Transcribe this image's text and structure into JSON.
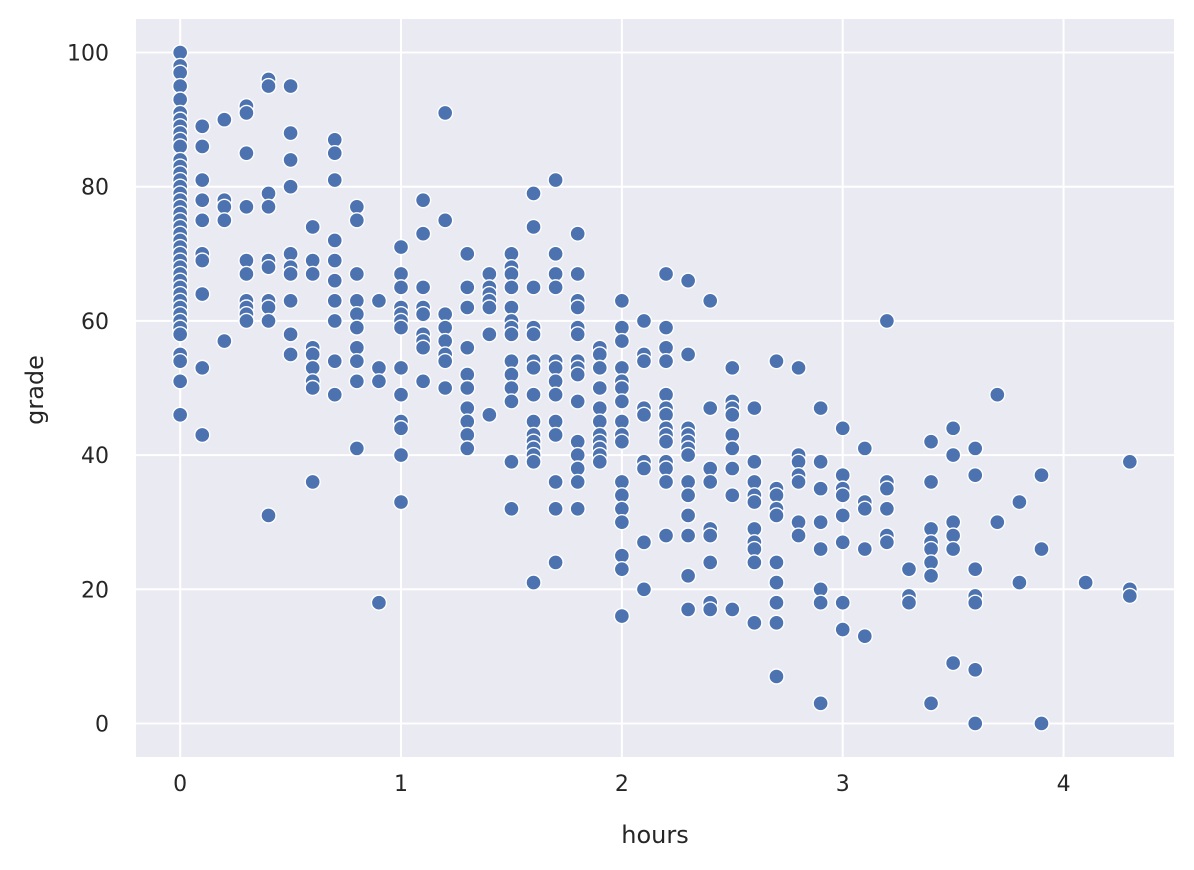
{
  "chart_data": {
    "type": "scatter",
    "title": "",
    "xlabel": "hours",
    "ylabel": "grade",
    "xlim": [
      -0.2,
      4.5
    ],
    "ylim": [
      -5,
      105
    ],
    "xticks": [
      0,
      1,
      2,
      3,
      4
    ],
    "yticks": [
      0,
      20,
      40,
      60,
      80,
      100
    ],
    "grid": true,
    "point_color": "#4c72b0",
    "background_color": "#eaeaf2",
    "points": [
      [
        0,
        100
      ],
      [
        0,
        98
      ],
      [
        0,
        97
      ],
      [
        0,
        95
      ],
      [
        0,
        93
      ],
      [
        0,
        91
      ],
      [
        0,
        90
      ],
      [
        0,
        89
      ],
      [
        0,
        88
      ],
      [
        0,
        87
      ],
      [
        0,
        86
      ],
      [
        0,
        84
      ],
      [
        0,
        83
      ],
      [
        0,
        82
      ],
      [
        0,
        81
      ],
      [
        0,
        80
      ],
      [
        0,
        79
      ],
      [
        0,
        78
      ],
      [
        0,
        77
      ],
      [
        0,
        76
      ],
      [
        0,
        75
      ],
      [
        0,
        74
      ],
      [
        0,
        73
      ],
      [
        0,
        72
      ],
      [
        0,
        71
      ],
      [
        0,
        70
      ],
      [
        0,
        69
      ],
      [
        0,
        68
      ],
      [
        0,
        67
      ],
      [
        0,
        66
      ],
      [
        0,
        65
      ],
      [
        0,
        64
      ],
      [
        0,
        63
      ],
      [
        0,
        62
      ],
      [
        0,
        61
      ],
      [
        0,
        60
      ],
      [
        0,
        59
      ],
      [
        0,
        58
      ],
      [
        0,
        55
      ],
      [
        0,
        54
      ],
      [
        0,
        51
      ],
      [
        0,
        46
      ],
      [
        0.1,
        89
      ],
      [
        0.1,
        86
      ],
      [
        0.1,
        81
      ],
      [
        0.1,
        78
      ],
      [
        0.1,
        75
      ],
      [
        0.1,
        70
      ],
      [
        0.1,
        69
      ],
      [
        0.1,
        64
      ],
      [
        0.1,
        53
      ],
      [
        0.1,
        43
      ],
      [
        0.2,
        90
      ],
      [
        0.2,
        78
      ],
      [
        0.2,
        77
      ],
      [
        0.2,
        75
      ],
      [
        0.2,
        57
      ],
      [
        0.3,
        92
      ],
      [
        0.3,
        91
      ],
      [
        0.3,
        85
      ],
      [
        0.3,
        77
      ],
      [
        0.3,
        69
      ],
      [
        0.3,
        67
      ],
      [
        0.3,
        63
      ],
      [
        0.3,
        62
      ],
      [
        0.3,
        61
      ],
      [
        0.3,
        60
      ],
      [
        0.4,
        96
      ],
      [
        0.4,
        95
      ],
      [
        0.4,
        79
      ],
      [
        0.4,
        77
      ],
      [
        0.4,
        69
      ],
      [
        0.4,
        68
      ],
      [
        0.4,
        63
      ],
      [
        0.4,
        62
      ],
      [
        0.4,
        60
      ],
      [
        0.4,
        31
      ],
      [
        0.5,
        95
      ],
      [
        0.5,
        88
      ],
      [
        0.5,
        84
      ],
      [
        0.5,
        80
      ],
      [
        0.5,
        70
      ],
      [
        0.5,
        68
      ],
      [
        0.5,
        67
      ],
      [
        0.5,
        63
      ],
      [
        0.5,
        58
      ],
      [
        0.5,
        55
      ],
      [
        0.6,
        74
      ],
      [
        0.6,
        69
      ],
      [
        0.6,
        67
      ],
      [
        0.6,
        56
      ],
      [
        0.6,
        55
      ],
      [
        0.6,
        53
      ],
      [
        0.6,
        51
      ],
      [
        0.6,
        50
      ],
      [
        0.6,
        36
      ],
      [
        0.7,
        87
      ],
      [
        0.7,
        85
      ],
      [
        0.7,
        81
      ],
      [
        0.7,
        72
      ],
      [
        0.7,
        69
      ],
      [
        0.7,
        66
      ],
      [
        0.7,
        63
      ],
      [
        0.7,
        60
      ],
      [
        0.7,
        54
      ],
      [
        0.7,
        49
      ],
      [
        0.8,
        77
      ],
      [
        0.8,
        75
      ],
      [
        0.8,
        67
      ],
      [
        0.8,
        63
      ],
      [
        0.8,
        61
      ],
      [
        0.8,
        59
      ],
      [
        0.8,
        56
      ],
      [
        0.8,
        54
      ],
      [
        0.8,
        51
      ],
      [
        0.8,
        41
      ],
      [
        0.9,
        63
      ],
      [
        0.9,
        53
      ],
      [
        0.9,
        51
      ],
      [
        0.9,
        18
      ],
      [
        1.0,
        71
      ],
      [
        1.0,
        67
      ],
      [
        1.0,
        65
      ],
      [
        1.0,
        62
      ],
      [
        1.0,
        61
      ],
      [
        1.0,
        60
      ],
      [
        1.0,
        59
      ],
      [
        1.0,
        53
      ],
      [
        1.0,
        49
      ],
      [
        1.0,
        45
      ],
      [
        1.0,
        44
      ],
      [
        1.0,
        40
      ],
      [
        1.0,
        33
      ],
      [
        1.1,
        78
      ],
      [
        1.1,
        73
      ],
      [
        1.1,
        65
      ],
      [
        1.1,
        62
      ],
      [
        1.1,
        61
      ],
      [
        1.1,
        58
      ],
      [
        1.1,
        57
      ],
      [
        1.1,
        56
      ],
      [
        1.1,
        51
      ],
      [
        1.2,
        91
      ],
      [
        1.2,
        75
      ],
      [
        1.2,
        61
      ],
      [
        1.2,
        59
      ],
      [
        1.2,
        57
      ],
      [
        1.2,
        55
      ],
      [
        1.2,
        54
      ],
      [
        1.2,
        50
      ],
      [
        1.3,
        70
      ],
      [
        1.3,
        65
      ],
      [
        1.3,
        62
      ],
      [
        1.3,
        56
      ],
      [
        1.3,
        52
      ],
      [
        1.3,
        50
      ],
      [
        1.3,
        47
      ],
      [
        1.3,
        45
      ],
      [
        1.3,
        43
      ],
      [
        1.3,
        41
      ],
      [
        1.4,
        67
      ],
      [
        1.4,
        65
      ],
      [
        1.4,
        64
      ],
      [
        1.4,
        63
      ],
      [
        1.4,
        62
      ],
      [
        1.4,
        58
      ],
      [
        1.4,
        46
      ],
      [
        1.5,
        70
      ],
      [
        1.5,
        68
      ],
      [
        1.5,
        67
      ],
      [
        1.5,
        65
      ],
      [
        1.5,
        62
      ],
      [
        1.5,
        60
      ],
      [
        1.5,
        59
      ],
      [
        1.5,
        58
      ],
      [
        1.5,
        54
      ],
      [
        1.5,
        52
      ],
      [
        1.5,
        50
      ],
      [
        1.5,
        48
      ],
      [
        1.5,
        39
      ],
      [
        1.5,
        32
      ],
      [
        1.6,
        79
      ],
      [
        1.6,
        74
      ],
      [
        1.6,
        65
      ],
      [
        1.6,
        59
      ],
      [
        1.6,
        58
      ],
      [
        1.6,
        54
      ],
      [
        1.6,
        53
      ],
      [
        1.6,
        49
      ],
      [
        1.6,
        45
      ],
      [
        1.6,
        43
      ],
      [
        1.6,
        42
      ],
      [
        1.6,
        41
      ],
      [
        1.6,
        40
      ],
      [
        1.6,
        39
      ],
      [
        1.6,
        21
      ],
      [
        1.7,
        81
      ],
      [
        1.7,
        70
      ],
      [
        1.7,
        67
      ],
      [
        1.7,
        65
      ],
      [
        1.7,
        54
      ],
      [
        1.7,
        53
      ],
      [
        1.7,
        51
      ],
      [
        1.7,
        49
      ],
      [
        1.7,
        45
      ],
      [
        1.7,
        43
      ],
      [
        1.7,
        36
      ],
      [
        1.7,
        32
      ],
      [
        1.7,
        24
      ],
      [
        1.8,
        73
      ],
      [
        1.8,
        67
      ],
      [
        1.8,
        63
      ],
      [
        1.8,
        62
      ],
      [
        1.8,
        59
      ],
      [
        1.8,
        58
      ],
      [
        1.8,
        54
      ],
      [
        1.8,
        53
      ],
      [
        1.8,
        52
      ],
      [
        1.8,
        48
      ],
      [
        1.8,
        42
      ],
      [
        1.8,
        40
      ],
      [
        1.8,
        38
      ],
      [
        1.8,
        36
      ],
      [
        1.8,
        32
      ],
      [
        1.9,
        56
      ],
      [
        1.9,
        55
      ],
      [
        1.9,
        53
      ],
      [
        1.9,
        50
      ],
      [
        1.9,
        47
      ],
      [
        1.9,
        45
      ],
      [
        1.9,
        43
      ],
      [
        1.9,
        42
      ],
      [
        1.9,
        41
      ],
      [
        1.9,
        40
      ],
      [
        1.9,
        39
      ],
      [
        2.0,
        63
      ],
      [
        2.0,
        59
      ],
      [
        2.0,
        57
      ],
      [
        2.0,
        53
      ],
      [
        2.0,
        51
      ],
      [
        2.0,
        50
      ],
      [
        2.0,
        48
      ],
      [
        2.0,
        45
      ],
      [
        2.0,
        43
      ],
      [
        2.0,
        42
      ],
      [
        2.0,
        36
      ],
      [
        2.0,
        34
      ],
      [
        2.0,
        32
      ],
      [
        2.0,
        30
      ],
      [
        2.0,
        25
      ],
      [
        2.0,
        23
      ],
      [
        2.0,
        16
      ],
      [
        2.1,
        60
      ],
      [
        2.1,
        55
      ],
      [
        2.1,
        54
      ],
      [
        2.1,
        47
      ],
      [
        2.1,
        46
      ],
      [
        2.1,
        39
      ],
      [
        2.1,
        38
      ],
      [
        2.1,
        27
      ],
      [
        2.1,
        20
      ],
      [
        2.2,
        67
      ],
      [
        2.2,
        59
      ],
      [
        2.2,
        56
      ],
      [
        2.2,
        54
      ],
      [
        2.2,
        49
      ],
      [
        2.2,
        47
      ],
      [
        2.2,
        46
      ],
      [
        2.2,
        44
      ],
      [
        2.2,
        43
      ],
      [
        2.2,
        42
      ],
      [
        2.2,
        39
      ],
      [
        2.2,
        38
      ],
      [
        2.2,
        36
      ],
      [
        2.2,
        28
      ],
      [
        2.3,
        66
      ],
      [
        2.3,
        55
      ],
      [
        2.3,
        44
      ],
      [
        2.3,
        43
      ],
      [
        2.3,
        42
      ],
      [
        2.3,
        41
      ],
      [
        2.3,
        40
      ],
      [
        2.3,
        36
      ],
      [
        2.3,
        34
      ],
      [
        2.3,
        31
      ],
      [
        2.3,
        28
      ],
      [
        2.3,
        22
      ],
      [
        2.3,
        17
      ],
      [
        2.4,
        63
      ],
      [
        2.4,
        47
      ],
      [
        2.4,
        38
      ],
      [
        2.4,
        36
      ],
      [
        2.4,
        29
      ],
      [
        2.4,
        28
      ],
      [
        2.4,
        24
      ],
      [
        2.4,
        18
      ],
      [
        2.4,
        17
      ],
      [
        2.5,
        53
      ],
      [
        2.5,
        48
      ],
      [
        2.5,
        47
      ],
      [
        2.5,
        46
      ],
      [
        2.5,
        43
      ],
      [
        2.5,
        41
      ],
      [
        2.5,
        38
      ],
      [
        2.5,
        34
      ],
      [
        2.5,
        17
      ],
      [
        2.6,
        47
      ],
      [
        2.6,
        39
      ],
      [
        2.6,
        36
      ],
      [
        2.6,
        34
      ],
      [
        2.6,
        33
      ],
      [
        2.6,
        29
      ],
      [
        2.6,
        27
      ],
      [
        2.6,
        26
      ],
      [
        2.6,
        24
      ],
      [
        2.6,
        15
      ],
      [
        2.7,
        54
      ],
      [
        2.7,
        35
      ],
      [
        2.7,
        34
      ],
      [
        2.7,
        32
      ],
      [
        2.7,
        31
      ],
      [
        2.7,
        24
      ],
      [
        2.7,
        21
      ],
      [
        2.7,
        18
      ],
      [
        2.7,
        15
      ],
      [
        2.7,
        7
      ],
      [
        2.8,
        53
      ],
      [
        2.8,
        40
      ],
      [
        2.8,
        39
      ],
      [
        2.8,
        37
      ],
      [
        2.8,
        36
      ],
      [
        2.8,
        30
      ],
      [
        2.8,
        28
      ],
      [
        2.9,
        47
      ],
      [
        2.9,
        39
      ],
      [
        2.9,
        35
      ],
      [
        2.9,
        30
      ],
      [
        2.9,
        26
      ],
      [
        2.9,
        20
      ],
      [
        2.9,
        18
      ],
      [
        2.9,
        3
      ],
      [
        3.0,
        44
      ],
      [
        3.0,
        37
      ],
      [
        3.0,
        35
      ],
      [
        3.0,
        34
      ],
      [
        3.0,
        31
      ],
      [
        3.0,
        27
      ],
      [
        3.0,
        18
      ],
      [
        3.0,
        14
      ],
      [
        3.1,
        41
      ],
      [
        3.1,
        33
      ],
      [
        3.1,
        32
      ],
      [
        3.1,
        26
      ],
      [
        3.1,
        13
      ],
      [
        3.2,
        60
      ],
      [
        3.2,
        36
      ],
      [
        3.2,
        35
      ],
      [
        3.2,
        32
      ],
      [
        3.2,
        28
      ],
      [
        3.2,
        27
      ],
      [
        3.3,
        23
      ],
      [
        3.3,
        19
      ],
      [
        3.3,
        18
      ],
      [
        3.4,
        42
      ],
      [
        3.4,
        36
      ],
      [
        3.4,
        29
      ],
      [
        3.4,
        27
      ],
      [
        3.4,
        26
      ],
      [
        3.4,
        24
      ],
      [
        3.4,
        22
      ],
      [
        3.4,
        3
      ],
      [
        3.5,
        44
      ],
      [
        3.5,
        40
      ],
      [
        3.5,
        30
      ],
      [
        3.5,
        28
      ],
      [
        3.5,
        26
      ],
      [
        3.5,
        9
      ],
      [
        3.6,
        41
      ],
      [
        3.6,
        37
      ],
      [
        3.6,
        23
      ],
      [
        3.6,
        19
      ],
      [
        3.6,
        18
      ],
      [
        3.6,
        8
      ],
      [
        3.6,
        0
      ],
      [
        3.7,
        49
      ],
      [
        3.7,
        30
      ],
      [
        3.8,
        33
      ],
      [
        3.8,
        21
      ],
      [
        3.9,
        37
      ],
      [
        3.9,
        26
      ],
      [
        3.9,
        0
      ],
      [
        4.1,
        21
      ],
      [
        4.3,
        39
      ],
      [
        4.3,
        20
      ],
      [
        4.3,
        19
      ]
    ]
  }
}
